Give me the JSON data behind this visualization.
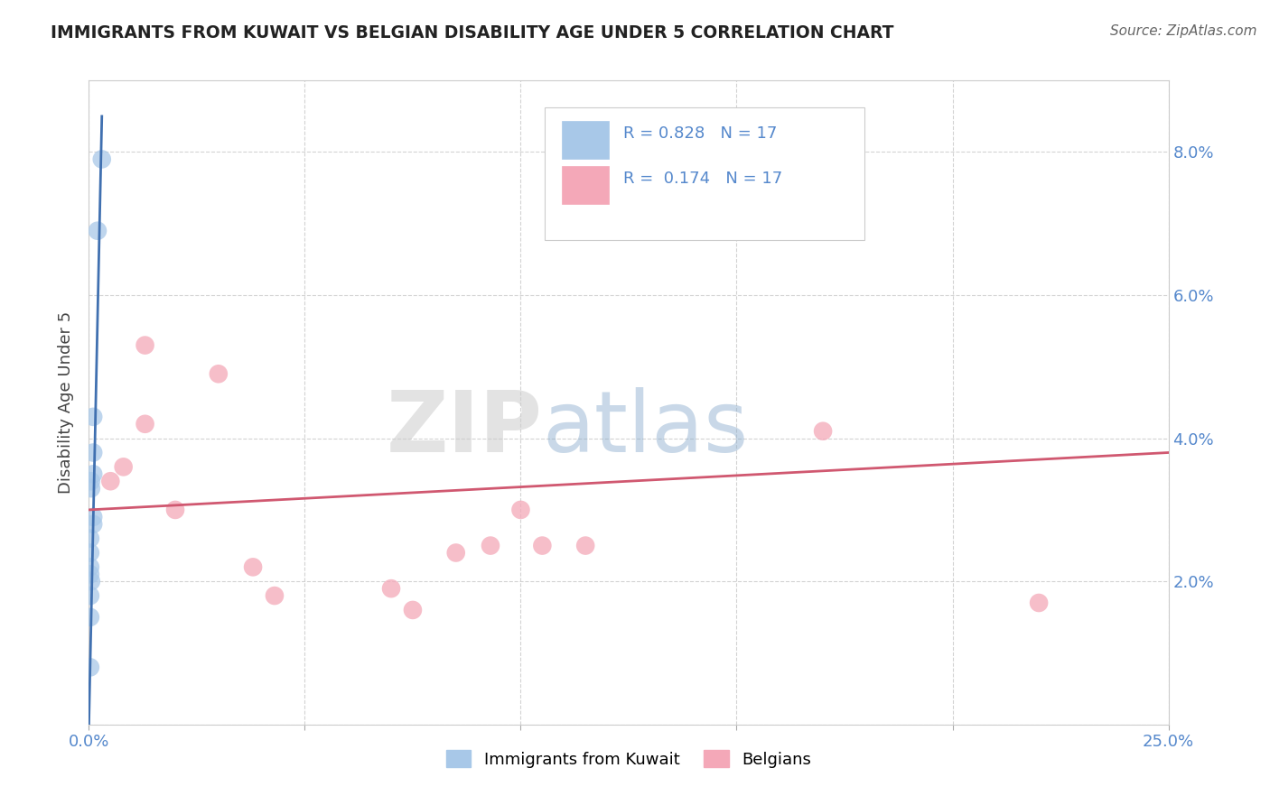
{
  "title": "IMMIGRANTS FROM KUWAIT VS BELGIAN DISABILITY AGE UNDER 5 CORRELATION CHART",
  "source": "Source: ZipAtlas.com",
  "ylabel": "Disability Age Under 5",
  "xlim": [
    0.0,
    0.25
  ],
  "ylim": [
    0.0,
    0.09
  ],
  "xtick_positions": [
    0.0,
    0.05,
    0.1,
    0.15,
    0.2,
    0.25
  ],
  "xtick_labels": [
    "0.0%",
    "",
    "",
    "",
    "",
    "25.0%"
  ],
  "ytick_positions": [
    0.0,
    0.02,
    0.04,
    0.06,
    0.08
  ],
  "ytick_labels": [
    "",
    "2.0%",
    "4.0%",
    "6.0%",
    "8.0%"
  ],
  "R_blue": 0.828,
  "N_blue": 17,
  "R_pink": 0.174,
  "N_pink": 17,
  "blue_scatter_color": "#a8c8e8",
  "pink_scatter_color": "#f4a8b8",
  "blue_line_color": "#4070b0",
  "pink_line_color": "#d05870",
  "blue_scatter_x": [
    0.003,
    0.002,
    0.001,
    0.001,
    0.001,
    0.0005,
    0.0005,
    0.001,
    0.001,
    0.0003,
    0.0003,
    0.0003,
    0.0003,
    0.0005,
    0.0003,
    0.0003,
    0.0003
  ],
  "blue_scatter_y": [
    0.079,
    0.069,
    0.043,
    0.038,
    0.035,
    0.034,
    0.033,
    0.029,
    0.028,
    0.026,
    0.024,
    0.022,
    0.021,
    0.02,
    0.018,
    0.015,
    0.008
  ],
  "pink_scatter_x": [
    0.005,
    0.008,
    0.013,
    0.03,
    0.013,
    0.02,
    0.1,
    0.105,
    0.115,
    0.038,
    0.17,
    0.043,
    0.093,
    0.085,
    0.075,
    0.22,
    0.07
  ],
  "pink_scatter_y": [
    0.034,
    0.036,
    0.053,
    0.049,
    0.042,
    0.03,
    0.03,
    0.025,
    0.025,
    0.022,
    0.041,
    0.018,
    0.025,
    0.024,
    0.016,
    0.017,
    0.019
  ],
  "pink_line_x0": 0.0,
  "pink_line_y0": 0.03,
  "pink_line_x1": 0.25,
  "pink_line_y1": 0.038,
  "blue_line_x0": 0.0,
  "blue_line_y0": 0.0,
  "blue_line_x1": 0.003,
  "blue_line_y1": 0.085,
  "watermark_zip": "ZIP",
  "watermark_atlas": "atlas",
  "legend_label_blue": "Immigrants from Kuwait",
  "legend_label_pink": "Belgians",
  "grid_color": "#c8c8c8",
  "background_color": "#ffffff",
  "tick_color": "#5588cc",
  "title_color": "#222222",
  "source_color": "#666666",
  "ylabel_color": "#444444"
}
